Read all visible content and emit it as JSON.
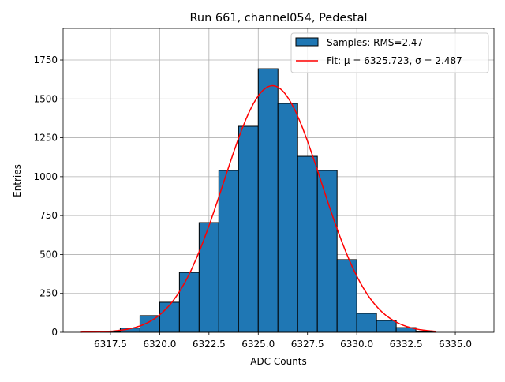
{
  "chart_data": {
    "type": "bar",
    "title": "Run 661, channel054, Pedestal",
    "xlabel": "ADC Counts",
    "ylabel": "Entries",
    "xlim": [
      6315.1,
      6336.96
    ],
    "ylim": [
      0,
      1953
    ],
    "grid": true,
    "legend_position": "top-right",
    "xticks": [
      6317.5,
      6320.0,
      6322.5,
      6325.0,
      6327.5,
      6330.0,
      6332.5,
      6335.0
    ],
    "xtick_labels": [
      "6317.5",
      "6320.0",
      "6322.5",
      "6325.0",
      "6327.5",
      "6330.0",
      "6332.5",
      "6335.0"
    ],
    "yticks": [
      0,
      250,
      500,
      750,
      1000,
      1250,
      1500,
      1750
    ],
    "ytick_labels": [
      "0",
      "250",
      "500",
      "750",
      "1000",
      "1250",
      "1500",
      "1750"
    ],
    "bin_edges": [
      6317,
      6318,
      6319,
      6320,
      6321,
      6322,
      6323,
      6324,
      6325,
      6326,
      6327,
      6328,
      6329,
      6330,
      6331,
      6332,
      6333,
      6334
    ],
    "values": [
      3,
      27,
      107,
      193,
      385,
      705,
      1040,
      1324,
      1694,
      1471,
      1131,
      1040,
      467,
      122,
      76,
      30,
      3
    ],
    "series": [
      {
        "name": "Samples: RMS=2.47",
        "type": "histogram",
        "color": "#1f77b4"
      },
      {
        "name": "Fit: μ = 6325.723, σ = 2.487",
        "type": "line",
        "color": "#ff0000",
        "mu": 6325.723,
        "sigma": 2.487,
        "amplitude": 1585,
        "x_range": [
          6316,
          6334
        ]
      }
    ],
    "legend": {
      "hist_label_prefix": "Samples: RMS=2.47",
      "fit_label": "Fit: μ = 6325.723, σ = 2.487"
    }
  }
}
